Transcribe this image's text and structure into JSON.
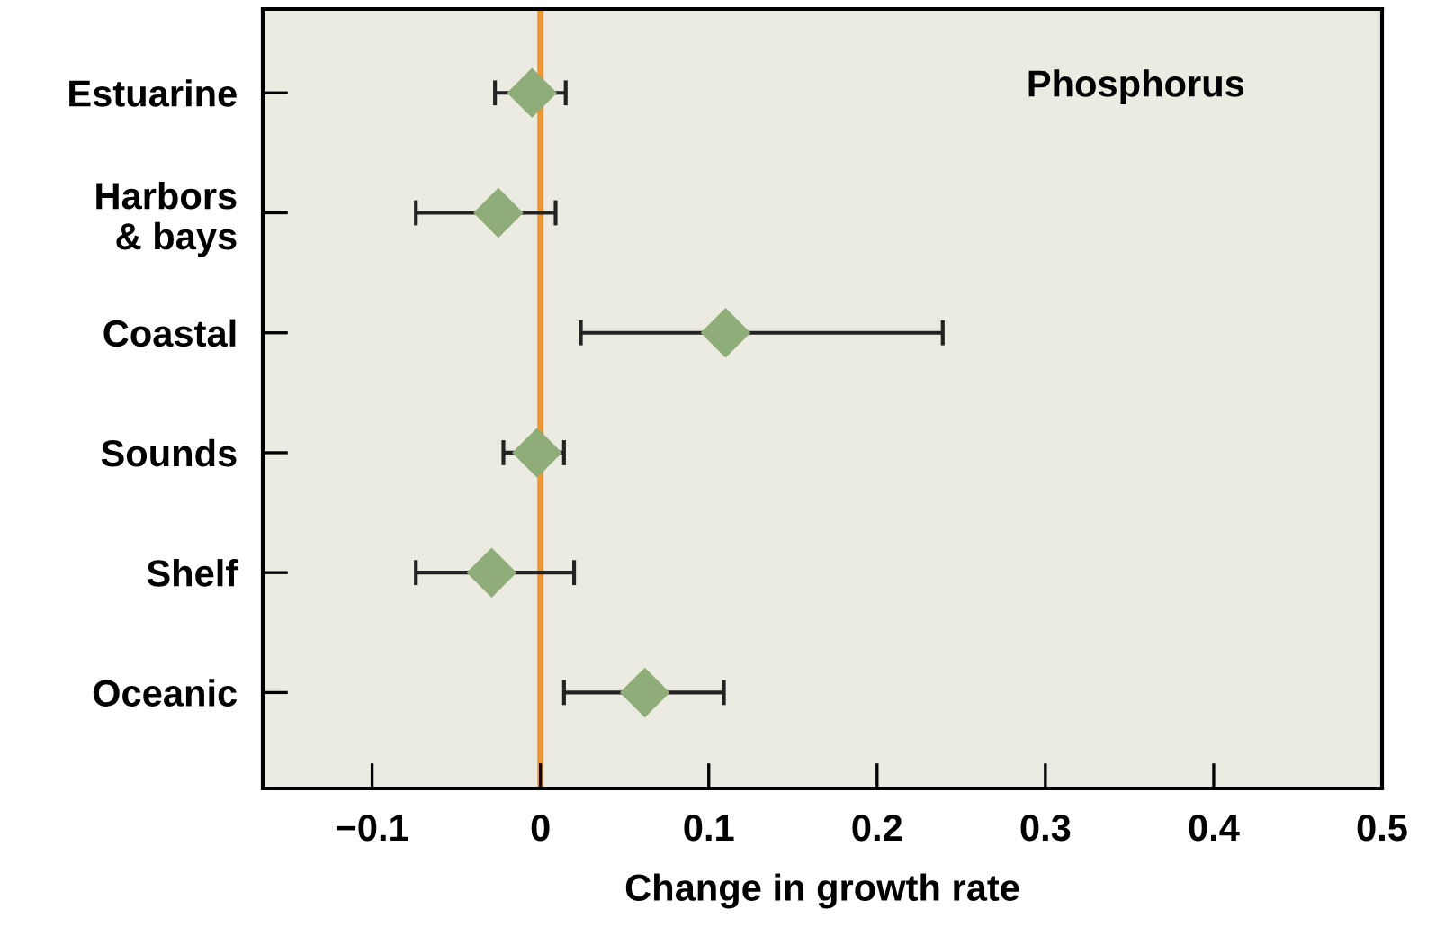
{
  "chart_data": {
    "type": "scatter",
    "orientation": "horizontal",
    "xlabel": "Change in growth rate",
    "categories": [
      "Estuarine",
      "Harbors\n& bays",
      "Coastal",
      "Sounds",
      "Shelf",
      "Oceanic"
    ],
    "values": [
      -0.005,
      -0.025,
      0.11,
      -0.002,
      -0.029,
      0.062
    ],
    "errors": [
      [
        -0.027,
        0.015
      ],
      [
        -0.074,
        0.009
      ],
      [
        0.024,
        0.239
      ],
      [
        -0.022,
        0.014
      ],
      [
        -0.074,
        0.02
      ],
      [
        0.014,
        0.109
      ]
    ],
    "color": "#8fad78",
    "marker": "diamond",
    "xlim": [
      -0.165,
      0.5
    ],
    "xticks": [
      {
        "value": -0.1,
        "label": "−0.1"
      },
      0,
      0.1,
      0.2,
      0.3,
      0.4,
      0.5
    ],
    "ref_lines": [
      {
        "axis": "x",
        "value": 0,
        "color": "#f0962e"
      }
    ],
    "annotations": [
      "Phosphorus"
    ],
    "grid": false,
    "legend": false
  }
}
